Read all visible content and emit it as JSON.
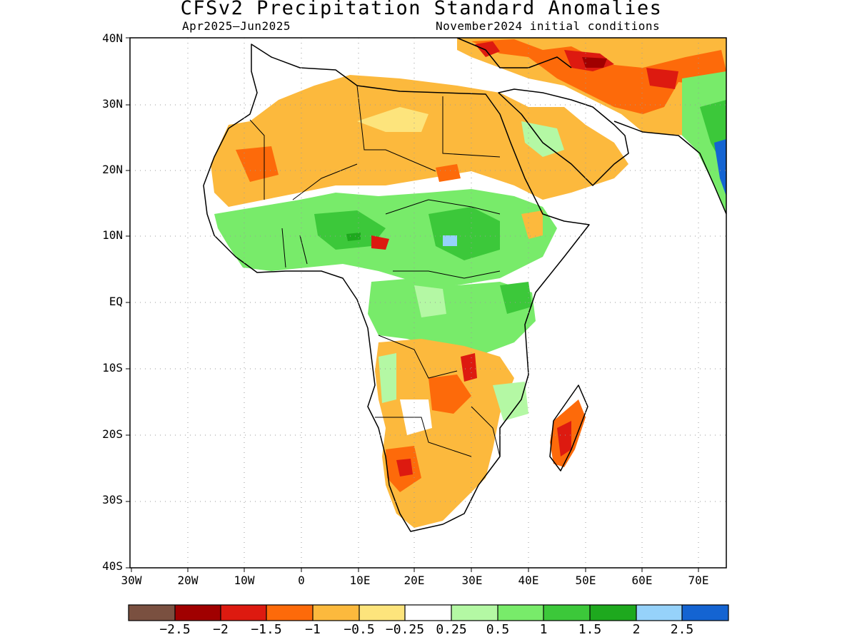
{
  "title": "CFSv2 Precipitation Standard Anomalies",
  "subtitle_left": "Apr2025–Jun2025",
  "subtitle_right": "November2024 initial conditions",
  "lat_labels": [
    "40N",
    "30N",
    "20N",
    "10N",
    "EQ",
    "10S",
    "20S",
    "30S",
    "40S"
  ],
  "lon_labels": [
    "30W",
    "20W",
    "10W",
    "0",
    "10E",
    "20E",
    "30E",
    "40E",
    "50E",
    "60E",
    "70E"
  ],
  "colorbar": {
    "colors": [
      "#7a5040",
      "#a00000",
      "#dd1a10",
      "#fd6a0a",
      "#fcb93d",
      "#fde47c",
      "#ffffff",
      "#b4f8a4",
      "#78eb6a",
      "#3cc83a",
      "#1ea91e",
      "#96d2fa",
      "#1464d2"
    ],
    "labels": [
      "−2.5",
      "−2",
      "−1.5",
      "−1",
      "−0.5",
      "−0.25",
      "0.25",
      "0.5",
      "1",
      "1.5",
      "2",
      "2.5"
    ]
  }
}
